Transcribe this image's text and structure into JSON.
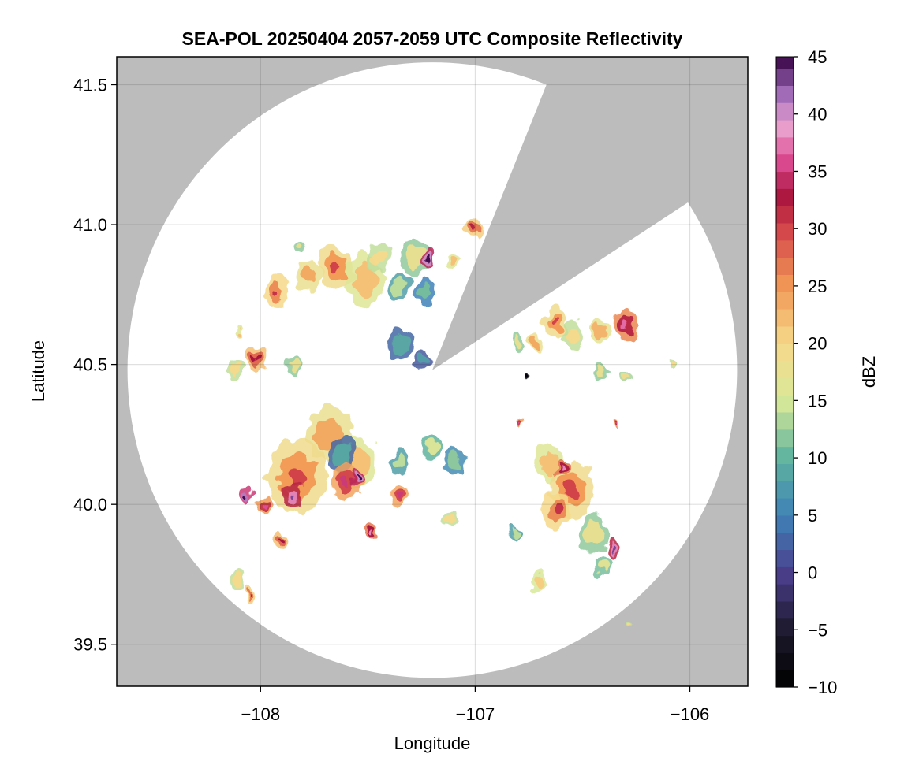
{
  "chart_data": {
    "type": "heatmap",
    "title": "SEA-POL 20250404 2057-2059 UTC Composite Reflectivity",
    "xlabel": "Longitude",
    "ylabel": "Latitude",
    "xlim": [
      -108.67,
      -105.73
    ],
    "ylim": [
      39.35,
      41.6
    ],
    "x_ticks": [
      {
        "v": -108,
        "label": "−108"
      },
      {
        "v": -107,
        "label": "−107"
      },
      {
        "v": -106,
        "label": "−106"
      }
    ],
    "y_ticks": [
      {
        "v": 39.5,
        "label": "39.5"
      },
      {
        "v": 40.0,
        "label": "40.0"
      },
      {
        "v": 40.5,
        "label": "40.5"
      },
      {
        "v": 41.0,
        "label": "41.0"
      },
      {
        "v": 41.5,
        "label": "41.5"
      }
    ],
    "grid": true,
    "radar": {
      "center_lon": -107.2,
      "center_lat": 40.48,
      "range_lon": 1.42,
      "range_lat": 1.1,
      "blocked_sectors_deg_from_north": [
        [
          22,
          57
        ]
      ],
      "no_data_color": "#bcbcbc",
      "coverage_color": "#ffffff"
    },
    "colorbar": {
      "label": "dBZ",
      "min": -10,
      "max": 45,
      "step": 1.5,
      "ticks": [
        {
          "v": -10,
          "label": "−10"
        },
        {
          "v": -5,
          "label": "−5"
        },
        {
          "v": 0,
          "label": "0"
        },
        {
          "v": 5,
          "label": "5"
        },
        {
          "v": 10,
          "label": "10"
        },
        {
          "v": 15,
          "label": "15"
        },
        {
          "v": 20,
          "label": "20"
        },
        {
          "v": 25,
          "label": "25"
        },
        {
          "v": 30,
          "label": "30"
        },
        {
          "v": 35,
          "label": "35"
        },
        {
          "v": 40,
          "label": "40"
        },
        {
          "v": 45,
          "label": "45"
        }
      ],
      "colors": [
        {
          "v": -10,
          "c": "#000000"
        },
        {
          "v": -5,
          "c": "#1d1a2e"
        },
        {
          "v": 0,
          "c": "#4b3f8c"
        },
        {
          "v": 5,
          "c": "#3f82b8"
        },
        {
          "v": 10,
          "c": "#5fb39e"
        },
        {
          "v": 15,
          "c": "#d8e99a"
        },
        {
          "v": 20,
          "c": "#f6d98a"
        },
        {
          "v": 25,
          "c": "#f19854"
        },
        {
          "v": 30,
          "c": "#d2434a"
        },
        {
          "v": 33,
          "c": "#a8143e"
        },
        {
          "v": 36,
          "c": "#dd4d93"
        },
        {
          "v": 39,
          "c": "#e9a4cf"
        },
        {
          "v": 42,
          "c": "#9c66b6"
        },
        {
          "v": 45,
          "c": "#3f0a4d"
        }
      ]
    },
    "echoes": [
      {
        "lon": -107.93,
        "lat": 40.76,
        "r": 0.05,
        "dbz": 26
      },
      {
        "lon": -107.78,
        "lat": 40.82,
        "r": 0.05,
        "dbz": 24
      },
      {
        "lon": -107.83,
        "lat": 40.92,
        "r": 0.025,
        "dbz": 18
      },
      {
        "lon": -107.65,
        "lat": 40.85,
        "r": 0.07,
        "dbz": 25
      },
      {
        "lon": -107.52,
        "lat": 40.8,
        "r": 0.08,
        "dbz": 22
      },
      {
        "lon": -107.45,
        "lat": 40.88,
        "r": 0.05,
        "dbz": 20
      },
      {
        "lon": -107.28,
        "lat": 40.88,
        "r": 0.06,
        "dbz": 18
      },
      {
        "lon": -107.22,
        "lat": 40.88,
        "r": 0.025,
        "dbz": 40
      },
      {
        "lon": -107.35,
        "lat": 40.78,
        "r": 0.04,
        "dbz": 14
      },
      {
        "lon": -107.23,
        "lat": 40.76,
        "r": 0.04,
        "dbz": 11
      },
      {
        "lon": -107.01,
        "lat": 40.99,
        "r": 0.03,
        "dbz": 27
      },
      {
        "lon": -107.1,
        "lat": 40.87,
        "r": 0.025,
        "dbz": 22
      },
      {
        "lon": -107.35,
        "lat": 40.57,
        "r": 0.05,
        "dbz": 9
      },
      {
        "lon": -107.25,
        "lat": 40.52,
        "r": 0.03,
        "dbz": 8
      },
      {
        "lon": -108.02,
        "lat": 40.52,
        "r": 0.04,
        "dbz": 28
      },
      {
        "lon": -108.12,
        "lat": 40.48,
        "r": 0.03,
        "dbz": 20
      },
      {
        "lon": -107.85,
        "lat": 40.5,
        "r": 0.03,
        "dbz": 18
      },
      {
        "lon": -108.1,
        "lat": 40.62,
        "r": 0.015,
        "dbz": 22
      },
      {
        "lon": -107.68,
        "lat": 40.25,
        "r": 0.09,
        "dbz": 24
      },
      {
        "lon": -107.83,
        "lat": 40.1,
        "r": 0.12,
        "dbz": 25
      },
      {
        "lon": -107.55,
        "lat": 40.15,
        "r": 0.08,
        "dbz": 22
      },
      {
        "lon": -107.62,
        "lat": 40.18,
        "r": 0.055,
        "dbz": 9
      },
      {
        "lon": -107.6,
        "lat": 40.08,
        "r": 0.06,
        "dbz": 30
      },
      {
        "lon": -107.85,
        "lat": 40.03,
        "r": 0.04,
        "dbz": 38
      },
      {
        "lon": -107.98,
        "lat": 40.0,
        "r": 0.03,
        "dbz": 31
      },
      {
        "lon": -108.07,
        "lat": 40.03,
        "r": 0.025,
        "dbz": 41
      },
      {
        "lon": -107.55,
        "lat": 40.1,
        "r": 0.02,
        "dbz": 40
      },
      {
        "lon": -107.36,
        "lat": 40.03,
        "r": 0.035,
        "dbz": 30
      },
      {
        "lon": -107.2,
        "lat": 40.2,
        "r": 0.04,
        "dbz": 16
      },
      {
        "lon": -107.1,
        "lat": 40.15,
        "r": 0.04,
        "dbz": 12
      },
      {
        "lon": -107.35,
        "lat": 40.15,
        "r": 0.035,
        "dbz": 14
      },
      {
        "lon": -107.48,
        "lat": 39.9,
        "r": 0.025,
        "dbz": 33
      },
      {
        "lon": -107.9,
        "lat": 39.87,
        "r": 0.03,
        "dbz": 28
      },
      {
        "lon": -108.1,
        "lat": 39.73,
        "r": 0.03,
        "dbz": 20
      },
      {
        "lon": -108.05,
        "lat": 39.68,
        "r": 0.02,
        "dbz": 27
      },
      {
        "lon": -107.12,
        "lat": 39.95,
        "r": 0.025,
        "dbz": 20
      },
      {
        "lon": -106.65,
        "lat": 40.15,
        "r": 0.06,
        "dbz": 22
      },
      {
        "lon": -106.55,
        "lat": 40.05,
        "r": 0.09,
        "dbz": 25
      },
      {
        "lon": -106.62,
        "lat": 39.98,
        "r": 0.06,
        "dbz": 26
      },
      {
        "lon": -106.6,
        "lat": 40.13,
        "r": 0.025,
        "dbz": 33
      },
      {
        "lon": -106.45,
        "lat": 39.9,
        "r": 0.06,
        "dbz": 18
      },
      {
        "lon": -106.36,
        "lat": 39.84,
        "r": 0.03,
        "dbz": 38
      },
      {
        "lon": -106.4,
        "lat": 39.78,
        "r": 0.03,
        "dbz": 17
      },
      {
        "lon": -106.7,
        "lat": 39.72,
        "r": 0.03,
        "dbz": 21
      },
      {
        "lon": -106.82,
        "lat": 39.9,
        "r": 0.02,
        "dbz": 14
      },
      {
        "lon": -106.62,
        "lat": 40.65,
        "r": 0.05,
        "dbz": 25
      },
      {
        "lon": -106.55,
        "lat": 40.6,
        "r": 0.04,
        "dbz": 20
      },
      {
        "lon": -106.3,
        "lat": 40.64,
        "r": 0.05,
        "dbz": 32
      },
      {
        "lon": -106.42,
        "lat": 40.62,
        "r": 0.035,
        "dbz": 23
      },
      {
        "lon": -106.72,
        "lat": 40.58,
        "r": 0.03,
        "dbz": 24
      },
      {
        "lon": -106.8,
        "lat": 40.58,
        "r": 0.025,
        "dbz": 18
      },
      {
        "lon": -106.42,
        "lat": 40.48,
        "r": 0.025,
        "dbz": 18
      },
      {
        "lon": -106.3,
        "lat": 40.45,
        "r": 0.02,
        "dbz": 19
      },
      {
        "lon": -106.08,
        "lat": 40.5,
        "r": 0.015,
        "dbz": 20
      },
      {
        "lon": -106.33,
        "lat": 40.28,
        "r": 0.01,
        "dbz": 32
      },
      {
        "lon": -106.75,
        "lat": 40.45,
        "r": 0.008,
        "dbz": -9
      },
      {
        "lon": -106.78,
        "lat": 40.3,
        "r": 0.012,
        "dbz": 31
      },
      {
        "lon": -106.28,
        "lat": 39.57,
        "r": 0.01,
        "dbz": 20
      }
    ]
  }
}
